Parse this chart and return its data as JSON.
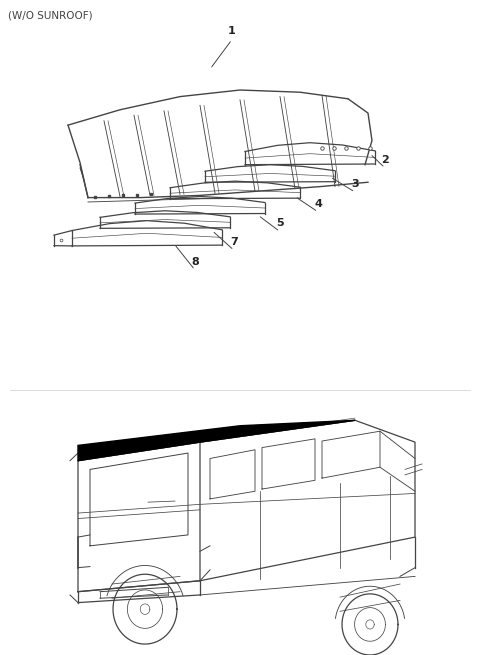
{
  "title": "(W/O SUNROOF)",
  "bg_color": "#ffffff",
  "line_color": "#444444",
  "label_color": "#222222",
  "figsize": [
    4.8,
    6.55
  ],
  "dpi": 100,
  "top_section": {
    "ymin": 0.42,
    "ymax": 1.0
  },
  "bot_section": {
    "ymin": 0.0,
    "ymax": 0.4
  }
}
